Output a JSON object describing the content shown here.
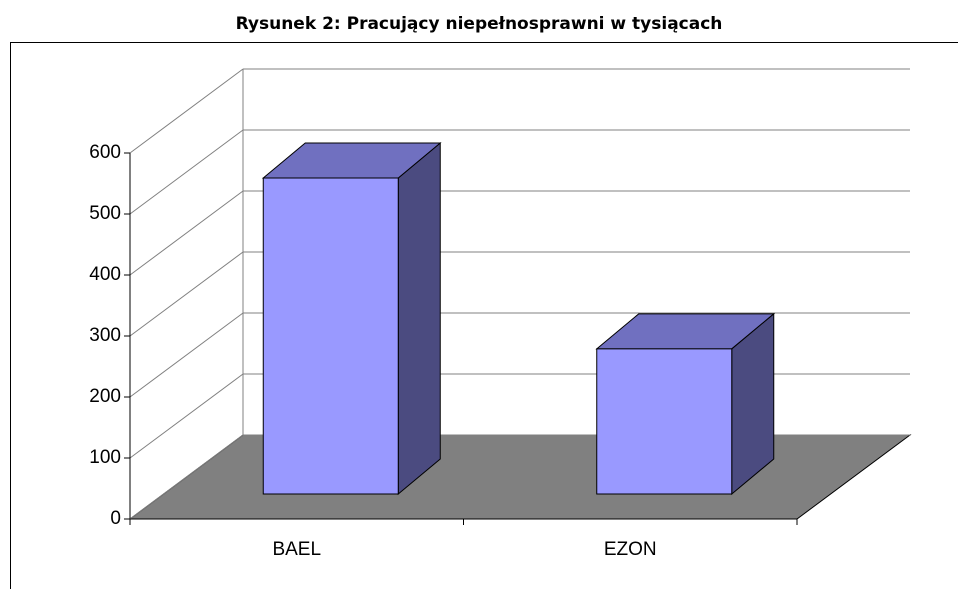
{
  "chart_data": {
    "type": "bar3d",
    "title": "Rysunek 2: Pracujący niepełnosprawni w tysiącach",
    "categories": [
      "BAEL",
      "EZON"
    ],
    "values": [
      518,
      238
    ],
    "color": "#9999ff",
    "ylim": [
      0,
      600
    ],
    "yticks": [
      0,
      100,
      200,
      300,
      400,
      500,
      600
    ],
    "grid": true
  }
}
